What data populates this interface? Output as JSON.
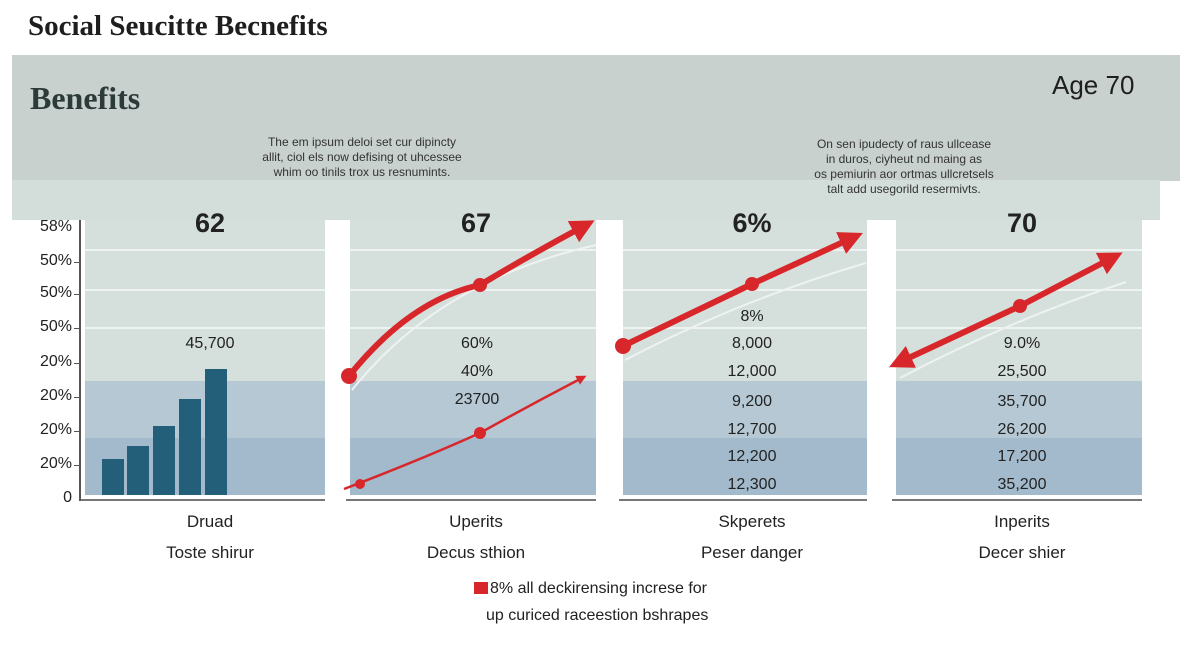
{
  "title": "Social  Seucitte  Becnefits",
  "header": {
    "label": "Benefits",
    "age": "Age 70",
    "desc_left": [
      "The em ipsum deloi set cur dipincty",
      "allit, ciol els now defising ot uhcessee",
      "whim oo tinils trox us resnumints."
    ],
    "desc_right": [
      "On sen ipudecty of raus ullcease",
      "in duros, ciyheut nd maing as",
      "os pemiurin aor ortmas ullcretsels",
      "talt add usegorild resermivts."
    ]
  },
  "colors": {
    "bar": "#235f78",
    "arrow": "#d8272b",
    "band_light": "#d5dfdb",
    "band_mid": "#b5c8d3",
    "band_dark": "#a2bacb"
  },
  "chart_data": {
    "type": "bar",
    "ytick_labels": [
      "58%",
      "50%",
      "50%",
      "50%",
      "20%",
      "20%",
      "20%",
      "20%",
      "0"
    ],
    "panels": [
      {
        "heading": "62",
        "label": "Druad",
        "sublabel": "Toste shirur",
        "bar_label": "45,700",
        "bar_values_relative": [
          0.13,
          0.18,
          0.25,
          0.35,
          0.46
        ]
      },
      {
        "heading": "67",
        "label": "Uperits",
        "sublabel": "Decus sthion",
        "values": [
          "60%",
          "40%",
          "23700"
        ],
        "trend": "increasing"
      },
      {
        "heading": "6%",
        "label": "Skperets",
        "sublabel": "Peser danger",
        "values": [
          "8%",
          "8,000",
          "12,000",
          "9,200",
          "12,700",
          "12,200",
          "12,300"
        ],
        "trend": "increasing"
      },
      {
        "heading": "70",
        "label": "Inperits",
        "sublabel": "Decer shier",
        "values": [
          "9.0%",
          "25,500",
          "35,700",
          "26,200",
          "17,200",
          "35,200"
        ],
        "trend": "increasing"
      }
    ]
  },
  "legend": {
    "line1": "8% all deckirensing increse for",
    "line2": "up curiced raceestion bshrapes"
  }
}
